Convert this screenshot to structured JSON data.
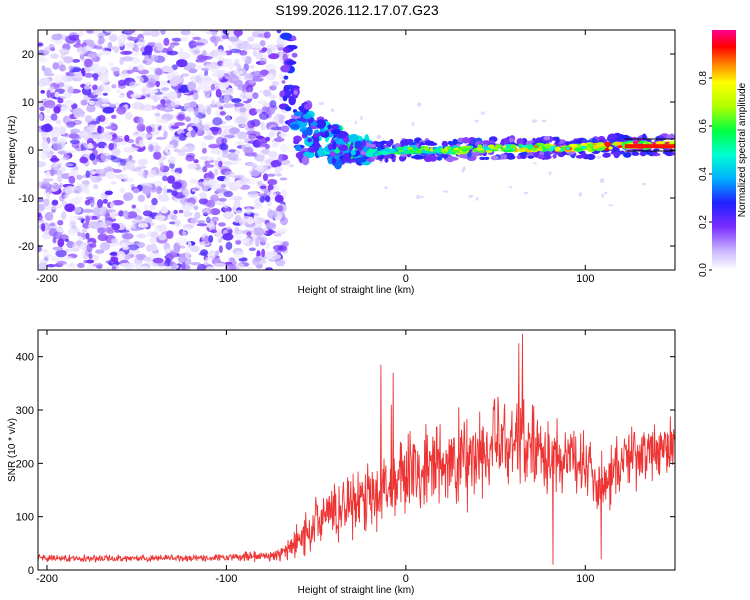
{
  "figure": {
    "title": "S199.2026.112.17.07.G23"
  },
  "chart_data": [
    {
      "type": "heatmap",
      "name": "spectrogram",
      "xlabel": "Height of straight line (km)",
      "ylabel": "Frequency (Hz)",
      "xlim": [
        -205,
        150
      ],
      "ylim": [
        -25,
        25
      ],
      "xticks": [
        -200,
        -100,
        0,
        100
      ],
      "yticks": [
        -20,
        -10,
        0,
        10,
        20
      ],
      "colorbar": {
        "label": "Normalized spectral amplitude",
        "range": [
          0.0,
          1.0
        ],
        "ticks": [
          0.0,
          0.2,
          0.4,
          0.6,
          0.8
        ],
        "tick_labels": [
          "0.0",
          "0.2",
          "0.4",
          "0.6",
          "0.8"
        ]
      },
      "noise_region": {
        "x_from": -205,
        "x_to": -67,
        "freq_from": -25,
        "freq_to": 25,
        "amplitude_range": [
          0.02,
          0.25
        ]
      },
      "transition": [
        {
          "x": -66,
          "freq": 17,
          "amplitude": 0.25
        },
        {
          "x": -60,
          "freq": 4,
          "amplitude": 0.3
        },
        {
          "x": -50,
          "freq": 3,
          "amplitude": 0.35
        },
        {
          "x": -40,
          "freq": 1,
          "amplitude": 0.4
        },
        {
          "x": -30,
          "freq": 0,
          "amplitude": 0.45
        }
      ],
      "signal_line": [
        {
          "x": -20,
          "freq": -0.5,
          "amplitude": 0.5
        },
        {
          "x": 0,
          "freq": 0,
          "amplitude": 0.6
        },
        {
          "x": 25,
          "freq": 0,
          "amplitude": 0.7
        },
        {
          "x": 50,
          "freq": 0.3,
          "amplitude": 0.75
        },
        {
          "x": 75,
          "freq": 0.5,
          "amplitude": 0.8
        },
        {
          "x": 100,
          "freq": 0.5,
          "amplitude": 0.85
        },
        {
          "x": 125,
          "freq": 1,
          "amplitude": 0.95
        },
        {
          "x": 150,
          "freq": 1,
          "amplitude": 0.95
        }
      ]
    },
    {
      "type": "line",
      "name": "snr",
      "xlabel": "Height of straight line (km)",
      "ylabel": "SNR (10 * v/v)",
      "xlim": [
        -205,
        150
      ],
      "ylim": [
        0,
        450
      ],
      "xticks": [
        -200,
        -100,
        0,
        100
      ],
      "yticks": [
        0,
        100,
        200,
        300,
        400
      ],
      "color": "#ee3333",
      "series": [
        {
          "name": "SNR envelope",
          "x": [
            -205,
            -150,
            -100,
            -70,
            -60,
            -50,
            -40,
            -30,
            -20,
            -10,
            0,
            10,
            20,
            30,
            40,
            50,
            60,
            70,
            80,
            90,
            100,
            110,
            120,
            130,
            140,
            150
          ],
          "center": [
            22,
            22,
            23,
            28,
            55,
            90,
            110,
            130,
            140,
            160,
            175,
            185,
            195,
            205,
            215,
            230,
            240,
            250,
            215,
            210,
            205,
            160,
            205,
            215,
            225,
            230
          ],
          "spread": [
            8,
            8,
            8,
            15,
            40,
            60,
            70,
            80,
            85,
            95,
            100,
            105,
            110,
            115,
            115,
            115,
            110,
            105,
            90,
            85,
            80,
            70,
            75,
            70,
            65,
            60
          ]
        }
      ],
      "peaks": [
        {
          "x": -14,
          "y": 385
        },
        {
          "x": -8,
          "y": 310
        },
        {
          "x": -7,
          "y": 370
        },
        {
          "x": 65,
          "y": 443
        },
        {
          "x": 63,
          "y": 425
        }
      ],
      "dips": [
        {
          "x": 82,
          "y": 10
        },
        {
          "x": 109,
          "y": 20
        }
      ]
    }
  ]
}
